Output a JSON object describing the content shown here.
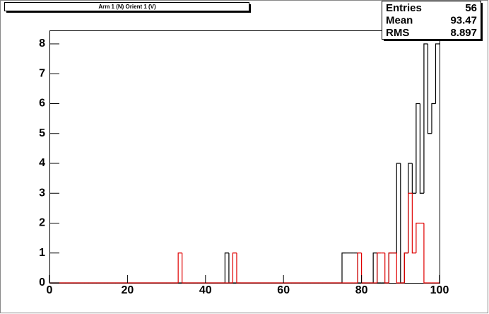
{
  "chart_data": {
    "type": "histogram",
    "title": "Arm 1 (N) Orient 1 (V)",
    "bins": [
      0,
      1,
      2,
      3,
      4,
      5,
      6,
      7,
      8,
      9,
      10,
      11,
      12,
      13,
      14,
      15,
      16,
      17,
      18,
      19,
      20,
      21,
      22,
      23,
      24,
      25,
      26,
      27,
      28,
      29,
      30,
      31,
      32,
      33,
      34,
      35,
      36,
      37,
      38,
      39,
      40,
      41,
      42,
      43,
      44,
      45,
      46,
      47,
      48,
      49,
      50,
      51,
      52,
      53,
      54,
      55,
      56,
      57,
      58,
      59,
      60,
      61,
      62,
      63,
      64,
      65,
      66,
      67,
      68,
      69,
      70,
      71,
      72,
      73,
      74,
      75,
      76,
      77,
      78,
      79,
      80,
      81,
      82,
      83,
      84,
      85,
      86,
      87,
      88,
      89,
      90,
      91,
      92,
      93,
      94,
      95,
      96,
      97,
      98,
      99,
      100
    ],
    "series": [
      {
        "color": "#000000",
        "values": [
          0,
          0,
          0,
          0,
          0,
          0,
          0,
          0,
          0,
          0,
          0,
          0,
          0,
          0,
          0,
          0,
          0,
          0,
          0,
          0,
          0,
          0,
          0,
          0,
          0,
          0,
          0,
          0,
          0,
          0,
          0,
          0,
          0,
          0,
          0,
          0,
          0,
          0,
          0,
          0,
          0,
          0,
          0,
          0,
          0,
          1,
          0,
          0,
          0,
          0,
          0,
          0,
          0,
          0,
          0,
          0,
          0,
          0,
          0,
          0,
          0,
          0,
          0,
          0,
          0,
          0,
          0,
          0,
          0,
          0,
          0,
          0,
          0,
          0,
          0,
          1,
          1,
          1,
          1,
          0,
          0,
          0,
          0,
          1,
          0,
          0,
          0,
          1,
          1,
          4,
          0,
          1,
          4,
          3,
          6,
          3,
          8,
          5,
          6,
          8
        ]
      },
      {
        "color": "#e00000",
        "values": [
          0,
          0,
          0,
          0,
          0,
          0,
          0,
          0,
          0,
          0,
          0,
          0,
          0,
          0,
          0,
          0,
          0,
          0,
          0,
          0,
          0,
          0,
          0,
          0,
          0,
          0,
          0,
          0,
          0,
          0,
          0,
          0,
          0,
          1,
          0,
          0,
          0,
          0,
          0,
          0,
          0,
          0,
          0,
          0,
          0,
          0,
          0,
          1,
          0,
          0,
          0,
          0,
          0,
          0,
          0,
          0,
          0,
          0,
          0,
          0,
          0,
          0,
          0,
          0,
          0,
          0,
          0,
          0,
          0,
          0,
          0,
          0,
          0,
          0,
          0,
          0,
          0,
          0,
          0,
          1,
          0,
          0,
          0,
          0,
          1,
          1,
          0,
          1,
          1,
          0,
          0,
          1,
          3,
          1,
          2,
          2,
          0,
          0,
          0,
          0
        ]
      }
    ],
    "xlim": [
      0,
      100
    ],
    "xticks": [
      0,
      20,
      40,
      60,
      80,
      100
    ],
    "ylim": [
      0,
      8.45
    ],
    "yticks": [
      0,
      1,
      2,
      3,
      4,
      5,
      6,
      7,
      8
    ],
    "stats": [
      {
        "label": "Entries",
        "value": 56
      },
      {
        "label": "Mean",
        "value": 93.47
      },
      {
        "label": "RMS",
        "value": 8.897
      }
    ]
  }
}
